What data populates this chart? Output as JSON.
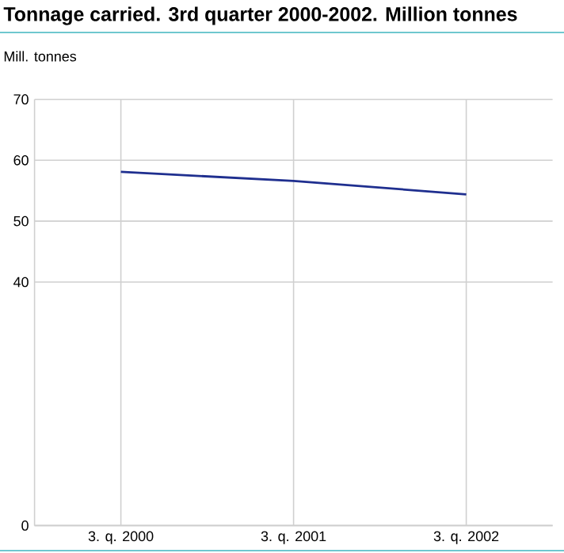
{
  "chart_data": {
    "type": "line",
    "title": "Tonnage carried. 3rd quarter 2000-2002. Million tonnes",
    "ylabel": "Mill. tonnes",
    "categories": [
      "3. q. 2000",
      "3. q. 2001",
      "3. q. 2002"
    ],
    "series": [
      {
        "color": "#1f2f8f",
        "values": [
          58.1,
          56.6,
          54.4
        ]
      }
    ],
    "ylim": [
      0,
      70
    ],
    "yticks": [
      0,
      40,
      50,
      60,
      70
    ],
    "grid": true,
    "marker": "none",
    "line_style": "solid"
  }
}
